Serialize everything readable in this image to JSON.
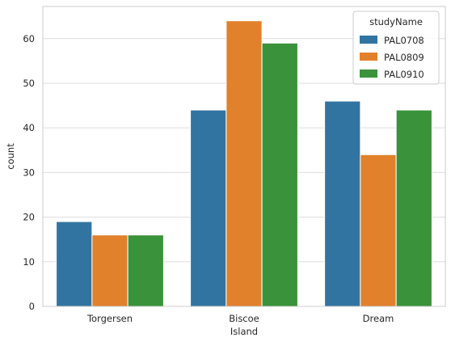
{
  "chart_data": {
    "type": "bar",
    "categories": [
      "Torgersen",
      "Biscoe",
      "Dream"
    ],
    "series": [
      {
        "name": "PAL0708",
        "values": [
          19,
          44,
          46
        ],
        "color": "#3274a1"
      },
      {
        "name": "PAL0809",
        "values": [
          16,
          64,
          34
        ],
        "color": "#e1812c"
      },
      {
        "name": "PAL0910",
        "values": [
          16,
          59,
          44
        ],
        "color": "#3a923a"
      }
    ],
    "xlabel": "Island",
    "ylabel": "count",
    "ylim": [
      0,
      67.2
    ],
    "yticks": [
      0,
      10,
      20,
      30,
      40,
      50,
      60
    ],
    "grid": true,
    "legend": {
      "title": "studyName",
      "position": "top-right"
    },
    "background": "#ffffff",
    "grid_color": "#dddddd"
  }
}
